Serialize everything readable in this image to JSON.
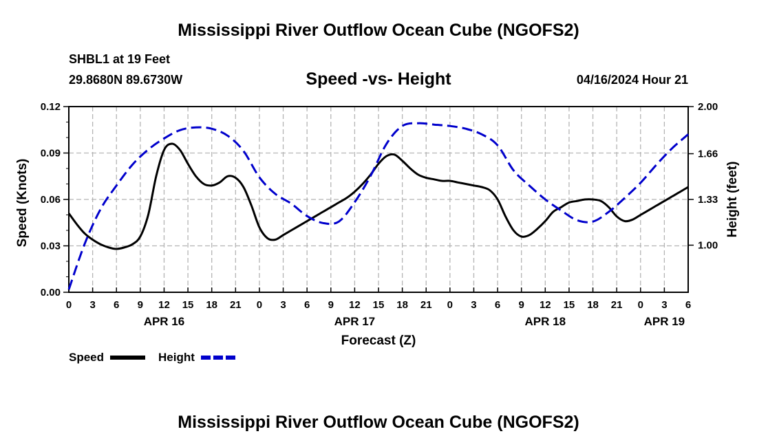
{
  "header": {
    "title": "Mississippi River Outflow Ocean Cube (NGOFS2)",
    "station": "SHBL1 at 19 Feet",
    "coords": "29.8680N  89.6730W",
    "subtitle": "Speed -vs- Height",
    "datetime": "04/16/2024 Hour 21"
  },
  "footer": {
    "title": "Mississippi River Outflow Ocean Cube (NGOFS2)"
  },
  "chart_data": {
    "type": "line",
    "title": "Speed -vs- Height",
    "xlabel": "Forecast (Z)",
    "ylabel": "Speed (Knots)",
    "y2label": "Height (feet)",
    "xlim": [
      0,
      78
    ],
    "ylim": [
      0,
      0.12
    ],
    "y2lim": [
      0.66,
      2.0
    ],
    "grid": true,
    "x_tick_values": [
      0,
      3,
      6,
      9,
      12,
      15,
      18,
      21,
      24,
      27,
      30,
      33,
      36,
      39,
      42,
      45,
      48,
      51,
      54,
      57,
      60,
      63,
      66,
      69,
      72,
      75,
      78
    ],
    "x_tick_labels": [
      "0",
      "3",
      "6",
      "9",
      "12",
      "15",
      "18",
      "21",
      "0",
      "3",
      "6",
      "9",
      "12",
      "15",
      "18",
      "21",
      "0",
      "3",
      "6",
      "9",
      "12",
      "15",
      "18",
      "21",
      "0",
      "3",
      "6"
    ],
    "date_labels": [
      {
        "x": 12,
        "label": "APR 16"
      },
      {
        "x": 36,
        "label": "APR 17"
      },
      {
        "x": 60,
        "label": "APR 18"
      },
      {
        "x": 75,
        "label": "APR 19"
      }
    ],
    "y_ticks": [
      0,
      0.03,
      0.06,
      0.09,
      0.12
    ],
    "y_tick_labels": [
      "0.00",
      "0.03",
      "0.06",
      "0.09",
      "0.12"
    ],
    "y2_ticks": [
      1.0,
      1.33,
      1.66,
      2.0
    ],
    "y2_tick_labels": [
      "1.00",
      "1.33",
      "1.66",
      "2.00"
    ],
    "series": [
      {
        "name": "Speed",
        "axis": "left",
        "color": "#000000",
        "style": "solid",
        "x": [
          0,
          1,
          2,
          3,
          4,
          5,
          6,
          7,
          8,
          9,
          10,
          11,
          12,
          13,
          14,
          15,
          16,
          17,
          18,
          19,
          20,
          21,
          22,
          23,
          24,
          25,
          26,
          27,
          28,
          29,
          30,
          31,
          32,
          33,
          34,
          35,
          36,
          37,
          38,
          39,
          40,
          41,
          42,
          43,
          44,
          45,
          46,
          47,
          48,
          49,
          50,
          51,
          52,
          53,
          54,
          55,
          56,
          57,
          58,
          59,
          60,
          61,
          62,
          63,
          64,
          65,
          66,
          67,
          68,
          69,
          70,
          71,
          72,
          73,
          74,
          75,
          76,
          77,
          78
        ],
        "values": [
          0.051,
          0.044,
          0.038,
          0.034,
          0.031,
          0.029,
          0.028,
          0.029,
          0.031,
          0.036,
          0.05,
          0.075,
          0.092,
          0.096,
          0.092,
          0.083,
          0.075,
          0.07,
          0.069,
          0.071,
          0.075,
          0.074,
          0.068,
          0.056,
          0.042,
          0.035,
          0.034,
          0.037,
          0.04,
          0.043,
          0.046,
          0.049,
          0.052,
          0.055,
          0.058,
          0.061,
          0.065,
          0.07,
          0.076,
          0.083,
          0.088,
          0.089,
          0.085,
          0.08,
          0.076,
          0.074,
          0.073,
          0.072,
          0.072,
          0.071,
          0.07,
          0.069,
          0.068,
          0.066,
          0.06,
          0.049,
          0.04,
          0.036,
          0.037,
          0.041,
          0.046,
          0.052,
          0.055,
          0.058,
          0.059,
          0.06,
          0.06,
          0.059,
          0.055,
          0.049,
          0.046,
          0.047,
          0.05,
          0.053,
          0.056,
          0.059,
          0.062,
          0.065,
          0.068
        ]
      },
      {
        "name": "Height",
        "axis": "right",
        "color": "#0000cc",
        "style": "dashed",
        "x": [
          0,
          2,
          4,
          6,
          8,
          10,
          12,
          14,
          16,
          18,
          20,
          22,
          24,
          26,
          28,
          30,
          32,
          34,
          36,
          38,
          40,
          42,
          44,
          46,
          48,
          50,
          52,
          54,
          56,
          58,
          60,
          62,
          64,
          66,
          68,
          70,
          72,
          74,
          76,
          78
        ],
        "values": [
          0.68,
          1.01,
          1.26,
          1.43,
          1.58,
          1.69,
          1.77,
          1.83,
          1.85,
          1.84,
          1.79,
          1.68,
          1.49,
          1.37,
          1.3,
          1.21,
          1.16,
          1.17,
          1.31,
          1.5,
          1.73,
          1.86,
          1.88,
          1.87,
          1.86,
          1.84,
          1.8,
          1.72,
          1.54,
          1.43,
          1.33,
          1.25,
          1.18,
          1.17,
          1.24,
          1.34,
          1.45,
          1.58,
          1.7,
          1.8
        ]
      }
    ],
    "legend": {
      "placement": "bottom-left",
      "items": [
        {
          "label": "Speed",
          "color": "#000000",
          "style": "solid"
        },
        {
          "label": "Height",
          "color": "#0000cc",
          "style": "dashed"
        }
      ]
    }
  }
}
